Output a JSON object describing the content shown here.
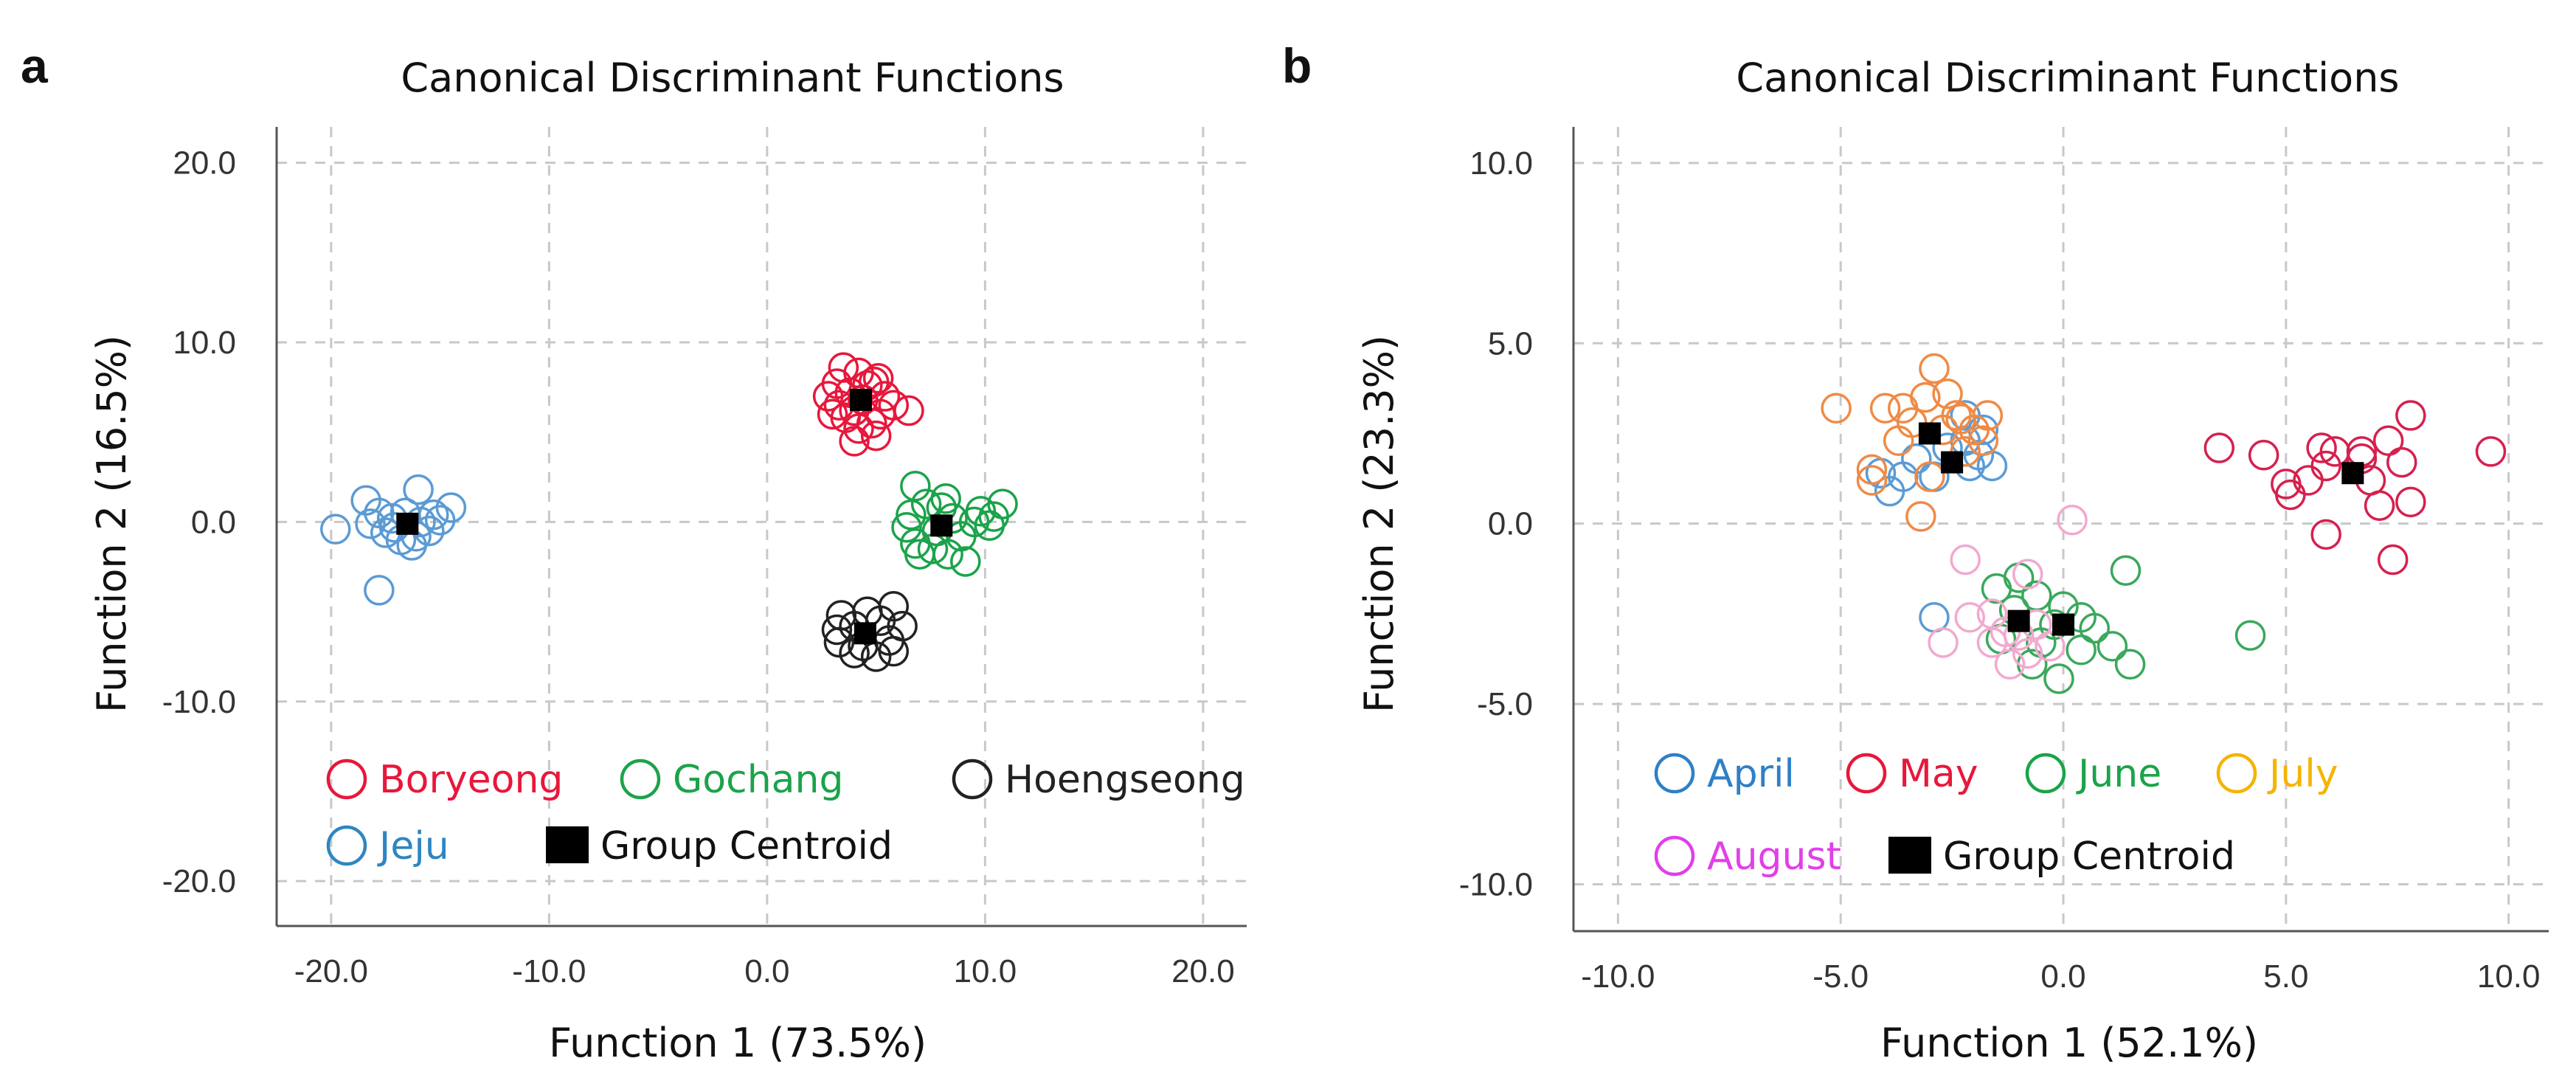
{
  "chart_data": [
    {
      "type": "scatter",
      "panel_label": "a",
      "title": "Canonical Discriminant Functions",
      "xlabel": "Function 1 (73.5%)",
      "ylabel": "Function 2 (16.5%)",
      "xlim": [
        -22.5,
        22.0
      ],
      "ylim": [
        -22.5,
        22.0
      ],
      "xticks": [
        -20,
        -10,
        0,
        10,
        20
      ],
      "yticks": [
        -20,
        -10,
        0,
        10,
        20
      ],
      "xtick_labels": [
        "-20.0",
        "-10.0",
        "0.0",
        "10.0",
        "20.0"
      ],
      "ytick_labels": [
        "-20.0",
        "-10.0",
        "0.0",
        "10.0",
        "20.0"
      ],
      "grid": true,
      "legend_placement": "bottom-left",
      "legend_rows": [
        [
          "Boryeong",
          "Gochang",
          "Hoengseong"
        ],
        [
          "Jeju",
          "Group Centroid"
        ]
      ],
      "series": [
        {
          "name": "Boryeong",
          "color": "#e8173b",
          "points": [
            [
              3.5,
              8.6
            ],
            [
              4.2,
              8.3
            ],
            [
              5.1,
              8.0
            ],
            [
              3.2,
              7.7
            ],
            [
              4.6,
              7.6
            ],
            [
              3.8,
              7.2
            ],
            [
              2.8,
              7.0
            ],
            [
              5.4,
              7.0
            ],
            [
              4.4,
              6.8
            ],
            [
              3.3,
              6.5
            ],
            [
              5.8,
              6.5
            ],
            [
              4.0,
              6.2
            ],
            [
              5.2,
              6.0
            ],
            [
              6.5,
              6.2
            ],
            [
              3.6,
              5.8
            ],
            [
              4.8,
              5.5
            ],
            [
              4.2,
              5.2
            ],
            [
              5.0,
              4.8
            ],
            [
              4.0,
              4.5
            ],
            [
              3.0,
              6.0
            ],
            [
              4.9,
              7.8
            ]
          ]
        },
        {
          "name": "Gochang",
          "color": "#1ba34a",
          "points": [
            [
              6.8,
              2.0
            ],
            [
              8.2,
              1.3
            ],
            [
              9.8,
              0.6
            ],
            [
              10.8,
              1.0
            ],
            [
              7.3,
              1.0
            ],
            [
              8.5,
              0.2
            ],
            [
              9.5,
              0.0
            ],
            [
              10.2,
              -0.2
            ],
            [
              6.4,
              -0.3
            ],
            [
              7.8,
              -0.5
            ],
            [
              8.9,
              -0.8
            ],
            [
              6.8,
              -1.2
            ],
            [
              7.6,
              -1.5
            ],
            [
              8.3,
              -1.8
            ],
            [
              9.1,
              -2.2
            ],
            [
              7.0,
              -1.8
            ],
            [
              8.0,
              0.8
            ],
            [
              6.6,
              0.4
            ],
            [
              10.4,
              0.3
            ]
          ]
        },
        {
          "name": "Hoengseong",
          "color": "#222222",
          "points": [
            [
              3.4,
              -5.2
            ],
            [
              4.6,
              -5.0
            ],
            [
              5.8,
              -4.7
            ],
            [
              3.2,
              -6.0
            ],
            [
              4.0,
              -5.8
            ],
            [
              5.2,
              -5.5
            ],
            [
              6.2,
              -5.8
            ],
            [
              3.3,
              -6.7
            ],
            [
              4.4,
              -6.9
            ],
            [
              5.6,
              -6.6
            ],
            [
              4.0,
              -7.3
            ],
            [
              5.0,
              -7.5
            ],
            [
              5.8,
              -7.2
            ]
          ]
        },
        {
          "name": "Jeju",
          "color": "#5b9bd5",
          "points": [
            [
              -19.8,
              -0.4
            ],
            [
              -18.4,
              1.2
            ],
            [
              -17.8,
              0.5
            ],
            [
              -17.2,
              0.2
            ],
            [
              -16.6,
              0.5
            ],
            [
              -15.9,
              0.0
            ],
            [
              -15.3,
              0.4
            ],
            [
              -14.5,
              0.8
            ],
            [
              -16.0,
              1.8
            ],
            [
              -17.5,
              -0.6
            ],
            [
              -16.8,
              -1.0
            ],
            [
              -16.1,
              -0.8
            ],
            [
              -15.5,
              -0.5
            ],
            [
              -15.0,
              0.1
            ],
            [
              -17.1,
              -0.3
            ],
            [
              -16.3,
              -1.3
            ],
            [
              -17.8,
              -3.8
            ],
            [
              -18.2,
              -0.1
            ]
          ]
        }
      ],
      "centroids": [
        {
          "group": "Boryeong",
          "x": 4.3,
          "y": 6.8
        },
        {
          "group": "Gochang",
          "x": 8.0,
          "y": -0.2
        },
        {
          "group": "Hoengseong",
          "x": 4.5,
          "y": -6.2
        },
        {
          "group": "Jeju",
          "x": -16.5,
          "y": -0.1
        }
      ]
    },
    {
      "type": "scatter",
      "panel_label": "b",
      "title": "Canonical Discriminant Functions",
      "xlabel": "Function 1 (52.1%)",
      "ylabel": "Function 2 (23.3%)",
      "xlim": [
        -11.0,
        10.9
      ],
      "ylim": [
        -11.3,
        11.0
      ],
      "xticks": [
        -10,
        -5,
        0,
        5,
        10
      ],
      "yticks": [
        -10,
        -5,
        0,
        5,
        10
      ],
      "xtick_labels": [
        "-10.0",
        "-5.0",
        "0.0",
        "5.0",
        "10.0"
      ],
      "ytick_labels": [
        "-10.0",
        "-5.0",
        "0.0",
        "5.0",
        "10.0"
      ],
      "grid": true,
      "legend_placement": "bottom-left",
      "legend_rows": [
        [
          "April",
          "May",
          "June",
          "July"
        ],
        [
          "August",
          "Group Centroid"
        ]
      ],
      "series": [
        {
          "name": "April",
          "color": "#5b9bd5",
          "points": [
            [
              -2.2,
              3.0
            ],
            [
              -1.8,
              2.6
            ],
            [
              -2.6,
              2.1
            ],
            [
              -1.9,
              1.9
            ],
            [
              -3.3,
              1.8
            ],
            [
              -2.1,
              1.6
            ],
            [
              -1.6,
              1.6
            ],
            [
              -3.6,
              1.3
            ],
            [
              -2.9,
              1.3
            ],
            [
              -4.1,
              1.4
            ],
            [
              -3.9,
              0.9
            ],
            [
              -2.2,
              2.3
            ],
            [
              -2.9,
              -2.6
            ]
          ]
        },
        {
          "name": "May",
          "color": "#d6204e",
          "points": [
            [
              3.5,
              2.1
            ],
            [
              4.5,
              1.9
            ],
            [
              5.8,
              2.1
            ],
            [
              6.7,
              2.0
            ],
            [
              7.3,
              2.3
            ],
            [
              7.8,
              3.0
            ],
            [
              9.6,
              2.0
            ],
            [
              7.6,
              1.7
            ],
            [
              5.9,
              1.6
            ],
            [
              5.5,
              1.2
            ],
            [
              5.0,
              1.1
            ],
            [
              6.9,
              1.2
            ],
            [
              5.1,
              0.8
            ],
            [
              7.1,
              0.5
            ],
            [
              7.8,
              0.6
            ],
            [
              5.9,
              -0.3
            ],
            [
              7.4,
              -1.0
            ],
            [
              6.7,
              1.8
            ],
            [
              6.1,
              2.0
            ]
          ]
        },
        {
          "name": "June",
          "color": "#3aa85c",
          "points": [
            [
              -1.5,
              -1.8
            ],
            [
              -0.6,
              -2.0
            ],
            [
              1.4,
              -1.3
            ],
            [
              -1.0,
              -1.5
            ],
            [
              0.0,
              -2.3
            ],
            [
              -0.2,
              -2.8
            ],
            [
              0.7,
              -2.9
            ],
            [
              -1.4,
              -3.2
            ],
            [
              0.4,
              -3.5
            ],
            [
              1.1,
              -3.4
            ],
            [
              -0.7,
              -3.9
            ],
            [
              -0.1,
              -4.3
            ],
            [
              1.5,
              -3.9
            ],
            [
              4.2,
              -3.1
            ],
            [
              0.4,
              -2.6
            ],
            [
              -0.5,
              -3.3
            ],
            [
              -1.1,
              -2.4
            ]
          ]
        },
        {
          "name": "July",
          "color": "#f08a45",
          "points": [
            [
              -5.1,
              3.2
            ],
            [
              -4.3,
              1.5
            ],
            [
              -4.3,
              1.2
            ],
            [
              -3.1,
              3.5
            ],
            [
              -2.9,
              4.3
            ],
            [
              -2.6,
              3.6
            ],
            [
              -2.4,
              3.0
            ],
            [
              -3.4,
              2.8
            ],
            [
              -2.0,
              2.6
            ],
            [
              -1.8,
              2.3
            ],
            [
              -3.7,
              2.3
            ],
            [
              -3.6,
              3.2
            ],
            [
              -2.2,
              2.0
            ],
            [
              -3.0,
              1.3
            ],
            [
              -2.7,
              2.6
            ],
            [
              -3.2,
              0.2
            ],
            [
              -1.7,
              3.0
            ],
            [
              -4.0,
              3.2
            ],
            [
              -2.3,
              2.9
            ]
          ]
        },
        {
          "name": "August",
          "color": "#f2a9cf",
          "points": [
            [
              -2.2,
              -1.0
            ],
            [
              -0.8,
              -1.4
            ],
            [
              0.2,
              0.1
            ],
            [
              -2.1,
              -2.6
            ],
            [
              -1.6,
              -2.5
            ],
            [
              -1.3,
              -3.0
            ],
            [
              -1.0,
              -3.1
            ],
            [
              -0.6,
              -2.8
            ],
            [
              -0.8,
              -3.6
            ],
            [
              -1.6,
              -3.3
            ],
            [
              -2.7,
              -3.3
            ],
            [
              -1.2,
              -3.9
            ],
            [
              -0.3,
              -3.4
            ]
          ]
        }
      ],
      "centroids": [
        {
          "group": "April",
          "x": -2.5,
          "y": 1.7
        },
        {
          "group": "May",
          "x": 6.5,
          "y": 1.4
        },
        {
          "group": "June",
          "x": 0.0,
          "y": -2.8
        },
        {
          "group": "July",
          "x": -3.0,
          "y": 2.5
        },
        {
          "group": "August",
          "x": -1.0,
          "y": -2.7
        }
      ]
    }
  ],
  "legend_colors": {
    "a": {
      "Boryeong": "#e8173b",
      "Gochang": "#1ba34a",
      "Hoengseong": "#222222",
      "Jeju": "#2e86c1",
      "Group Centroid": "#000000"
    },
    "b": {
      "April": "#2e7fc8",
      "May": "#e8173b",
      "June": "#1ba34a",
      "July": "#f5b400",
      "August": "#e040e8",
      "Group Centroid": "#000000"
    }
  }
}
